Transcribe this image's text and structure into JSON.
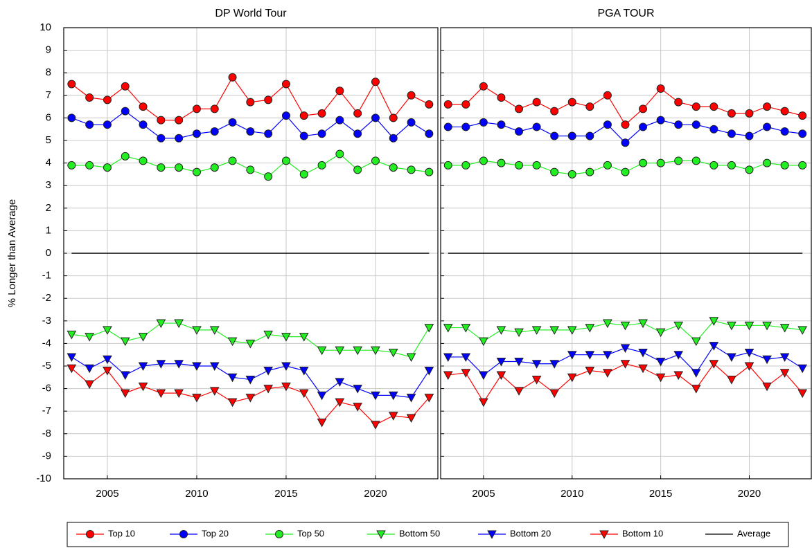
{
  "chart_data": [
    {
      "type": "line",
      "title": "DP World Tour",
      "ylabel": "% Longer than Average",
      "x": [
        2003,
        2004,
        2005,
        2006,
        2007,
        2008,
        2009,
        2010,
        2011,
        2012,
        2013,
        2014,
        2015,
        2016,
        2017,
        2018,
        2019,
        2020,
        2021,
        2022,
        2023
      ],
      "xlim": [
        2002.56,
        2023.49
      ],
      "xticks": [
        2005,
        2010,
        2015,
        2020
      ],
      "ylim": [
        -10,
        10
      ],
      "yticks": [
        -10,
        -9,
        -8,
        -7,
        -6,
        -5,
        -4,
        -3,
        -2,
        -1,
        0,
        1,
        2,
        3,
        4,
        5,
        6,
        7,
        8,
        9,
        10
      ],
      "show_ytick_labels": true,
      "grid": true,
      "legend": "bottom",
      "series": [
        {
          "name": "Top 10",
          "color": "#ff0000",
          "marker": "circle",
          "values": [
            7.5,
            6.9,
            6.8,
            7.4,
            6.5,
            5.9,
            5.9,
            6.4,
            6.4,
            7.8,
            6.7,
            6.8,
            7.5,
            6.1,
            6.2,
            7.2,
            6.2,
            7.6,
            6.0,
            7.0,
            6.6
          ]
        },
        {
          "name": "Top 20",
          "color": "#0000ff",
          "marker": "circle",
          "values": [
            6.0,
            5.7,
            5.7,
            6.3,
            5.7,
            5.1,
            5.1,
            5.3,
            5.4,
            5.8,
            5.4,
            5.3,
            6.1,
            5.2,
            5.3,
            5.9,
            5.3,
            6.0,
            5.1,
            5.8,
            5.3
          ]
        },
        {
          "name": "Top 50",
          "color": "#22ee22",
          "marker": "circle",
          "values": [
            3.9,
            3.9,
            3.8,
            4.3,
            4.1,
            3.8,
            3.8,
            3.6,
            3.8,
            4.1,
            3.7,
            3.4,
            4.1,
            3.5,
            3.9,
            4.4,
            3.7,
            4.1,
            3.8,
            3.7,
            3.6
          ]
        },
        {
          "name": "Bottom 50",
          "color": "#22ee22",
          "marker": "triangle-down",
          "values": [
            -3.6,
            -3.7,
            -3.4,
            -3.9,
            -3.7,
            -3.1,
            -3.1,
            -3.4,
            -3.4,
            -3.9,
            -4.0,
            -3.6,
            -3.7,
            -3.7,
            -4.3,
            -4.3,
            -4.3,
            -4.3,
            -4.4,
            -4.6,
            -3.3
          ]
        },
        {
          "name": "Bottom 20",
          "color": "#0000ff",
          "marker": "triangle-down",
          "values": [
            -4.6,
            -5.1,
            -4.7,
            -5.4,
            -5.0,
            -4.9,
            -4.9,
            -5.0,
            -5.0,
            -5.5,
            -5.6,
            -5.2,
            -5.0,
            -5.2,
            -6.3,
            -5.7,
            -6.0,
            -6.3,
            -6.3,
            -6.4,
            -5.2
          ]
        },
        {
          "name": "Bottom 10",
          "color": "#ff0000",
          "marker": "triangle-down",
          "values": [
            -5.1,
            -5.8,
            -5.2,
            -6.2,
            -5.9,
            -6.2,
            -6.2,
            -6.4,
            -6.1,
            -6.6,
            -6.4,
            -6.0,
            -5.9,
            -6.2,
            -7.5,
            -6.6,
            -6.8,
            -7.6,
            -7.2,
            -7.3,
            -6.4
          ]
        },
        {
          "name": "Average",
          "color": "#000000",
          "marker": "none",
          "values": [
            0,
            0,
            0,
            0,
            0,
            0,
            0,
            0,
            0,
            0,
            0,
            0,
            0,
            0,
            0,
            0,
            0,
            0,
            0,
            0,
            0
          ]
        }
      ]
    },
    {
      "type": "line",
      "title": "PGA TOUR",
      "x": [
        2003,
        2004,
        2005,
        2006,
        2007,
        2008,
        2009,
        2010,
        2011,
        2012,
        2013,
        2014,
        2015,
        2016,
        2017,
        2018,
        2019,
        2020,
        2021,
        2022,
        2023
      ],
      "xlim": [
        2002.58,
        2023.5
      ],
      "xticks": [
        2005,
        2010,
        2015,
        2020
      ],
      "ylim": [
        -10,
        10
      ],
      "yticks": [
        -10,
        -9,
        -8,
        -7,
        -6,
        -5,
        -4,
        -3,
        -2,
        -1,
        0,
        1,
        2,
        3,
        4,
        5,
        6,
        7,
        8,
        9,
        10
      ],
      "show_ytick_labels": false,
      "grid": true,
      "series": [
        {
          "name": "Top 10",
          "color": "#ff0000",
          "marker": "circle",
          "values": [
            6.6,
            6.6,
            7.4,
            6.9,
            6.4,
            6.7,
            6.3,
            6.7,
            6.5,
            7.0,
            5.7,
            6.4,
            7.3,
            6.7,
            6.5,
            6.5,
            6.2,
            6.2,
            6.5,
            6.3,
            6.1
          ]
        },
        {
          "name": "Top 20",
          "color": "#0000ff",
          "marker": "circle",
          "values": [
            5.6,
            5.6,
            5.8,
            5.7,
            5.4,
            5.6,
            5.2,
            5.2,
            5.2,
            5.7,
            4.9,
            5.6,
            5.9,
            5.7,
            5.7,
            5.5,
            5.3,
            5.2,
            5.6,
            5.4,
            5.3
          ]
        },
        {
          "name": "Top 50",
          "color": "#22ee22",
          "marker": "circle",
          "values": [
            3.9,
            3.9,
            4.1,
            4.0,
            3.9,
            3.9,
            3.6,
            3.5,
            3.6,
            3.9,
            3.6,
            4.0,
            4.0,
            4.1,
            4.1,
            3.9,
            3.9,
            3.7,
            4.0,
            3.9,
            3.9
          ]
        },
        {
          "name": "Bottom 50",
          "color": "#22ee22",
          "marker": "triangle-down",
          "values": [
            -3.3,
            -3.3,
            -3.9,
            -3.4,
            -3.5,
            -3.4,
            -3.4,
            -3.4,
            -3.3,
            -3.1,
            -3.2,
            -3.1,
            -3.5,
            -3.2,
            -3.9,
            -3.0,
            -3.2,
            -3.2,
            -3.2,
            -3.3,
            -3.4
          ]
        },
        {
          "name": "Bottom 20",
          "color": "#0000ff",
          "marker": "triangle-down",
          "values": [
            -4.6,
            -4.6,
            -5.4,
            -4.8,
            -4.8,
            -4.9,
            -4.9,
            -4.5,
            -4.5,
            -4.5,
            -4.2,
            -4.4,
            -4.8,
            -4.5,
            -5.3,
            -4.1,
            -4.6,
            -4.4,
            -4.7,
            -4.6,
            -5.1
          ]
        },
        {
          "name": "Bottom 10",
          "color": "#ff0000",
          "marker": "triangle-down",
          "values": [
            -5.4,
            -5.3,
            -6.6,
            -5.4,
            -6.1,
            -5.6,
            -6.2,
            -5.5,
            -5.2,
            -5.3,
            -4.9,
            -5.1,
            -5.5,
            -5.4,
            -6.0,
            -4.9,
            -5.6,
            -5.0,
            -5.9,
            -5.3,
            -6.2
          ]
        },
        {
          "name": "Average",
          "color": "#000000",
          "marker": "none",
          "values": [
            0,
            0,
            0,
            0,
            0,
            0,
            0,
            0,
            0,
            0,
            0,
            0,
            0,
            0,
            0,
            0,
            0,
            0,
            0,
            0,
            0
          ]
        }
      ]
    }
  ]
}
